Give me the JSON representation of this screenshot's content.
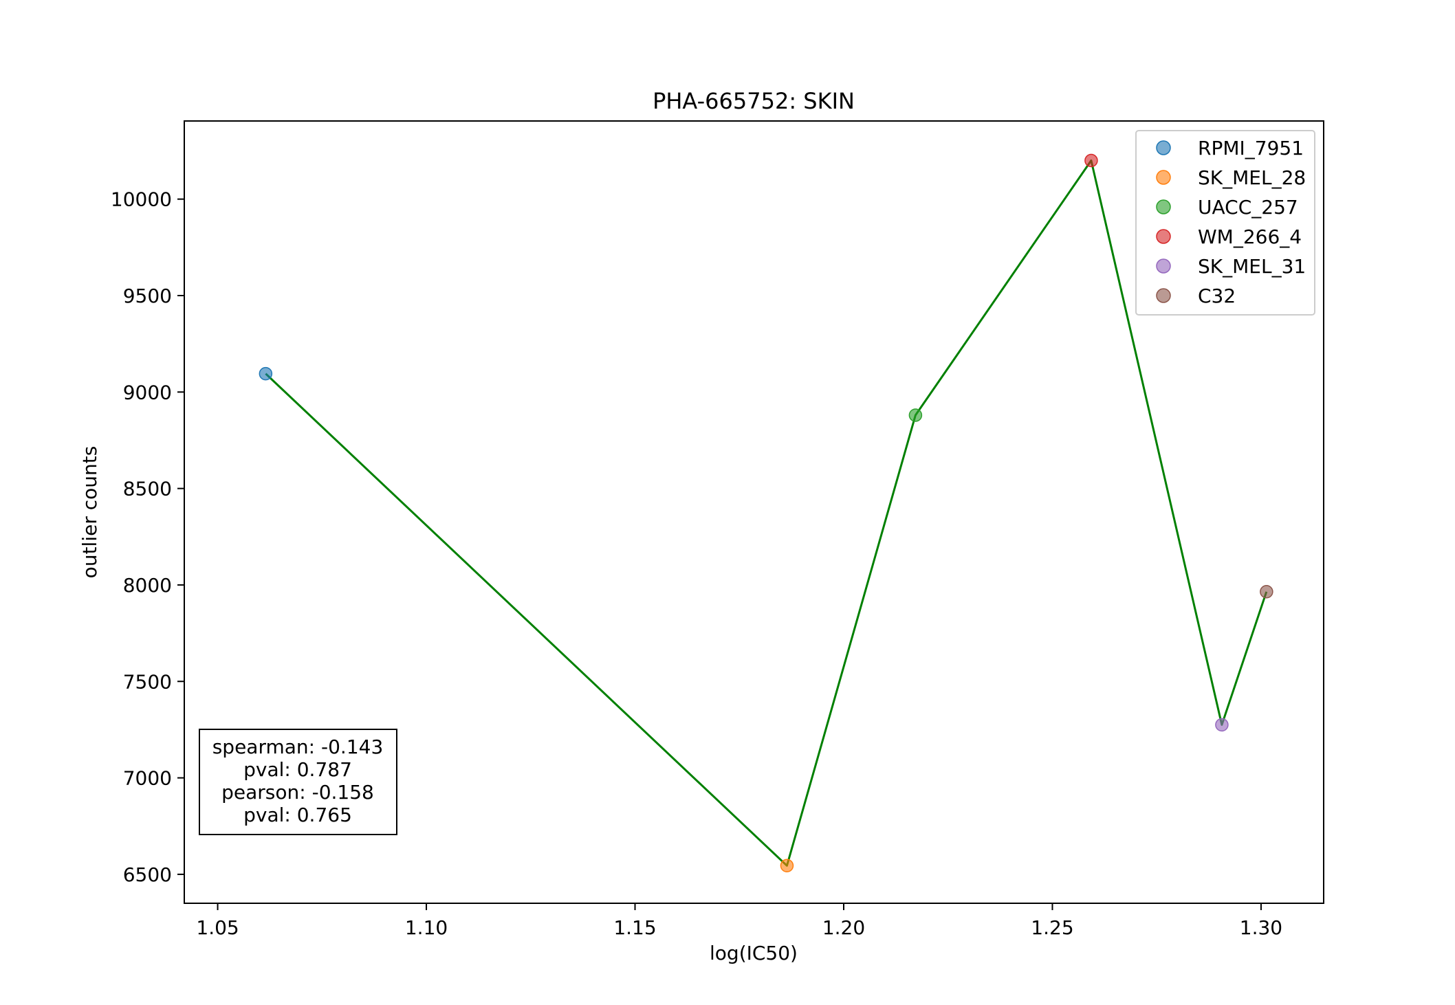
{
  "chart_data": {
    "type": "scatter",
    "title": "PHA-665752: SKIN",
    "xlabel": "log(IC50)",
    "ylabel": "outlier counts",
    "xlim": [
      1.042,
      1.315
    ],
    "ylim": [
      6350,
      10405
    ],
    "xticks": [
      1.05,
      1.1,
      1.15,
      1.2,
      1.25,
      1.3
    ],
    "xtick_labels": [
      "1.05",
      "1.10",
      "1.15",
      "1.20",
      "1.25",
      "1.30"
    ],
    "yticks": [
      6500,
      7000,
      7500,
      8000,
      8500,
      9000,
      9500,
      10000
    ],
    "ytick_labels": [
      "6500",
      "7000",
      "7500",
      "8000",
      "8500",
      "9000",
      "9500",
      "10000"
    ],
    "grid": false,
    "legend_position": "top-right",
    "series": [
      {
        "name": "RPMI_7951",
        "x": 1.0615,
        "y": 9095,
        "color": "#1f77b4"
      },
      {
        "name": "SK_MEL_28",
        "x": 1.1864,
        "y": 6545,
        "color": "#ff7f0e"
      },
      {
        "name": "UACC_257",
        "x": 1.2172,
        "y": 8880,
        "color": "#2ca02c"
      },
      {
        "name": "WM_266_4",
        "x": 1.2593,
        "y": 10200,
        "color": "#d62728"
      },
      {
        "name": "SK_MEL_31",
        "x": 1.2906,
        "y": 7275,
        "color": "#9467bd"
      },
      {
        "name": "C32",
        "x": 1.3013,
        "y": 7965,
        "color": "#8c564b"
      }
    ],
    "line_color": "#008000",
    "stats_box": [
      "spearman: -0.143",
      "pval: 0.787",
      "pearson: -0.158",
      "pval: 0.765"
    ]
  }
}
